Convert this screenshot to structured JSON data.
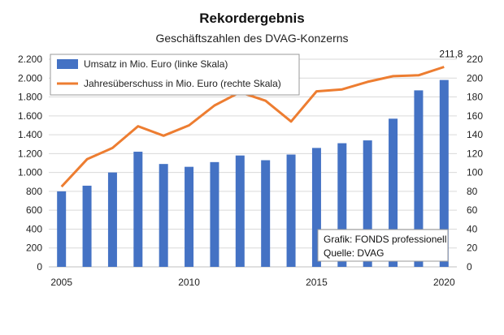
{
  "chart_data": {
    "type": "bar",
    "title": "Rekordergebnis",
    "subtitle": "Geschäftszahlen des DVAG-Konzerns",
    "x": [
      2005,
      2006,
      2007,
      2008,
      2009,
      2010,
      2011,
      2012,
      2013,
      2014,
      2015,
      2016,
      2017,
      2018,
      2019,
      2020
    ],
    "x_tick_labels": [
      "2005",
      "2010",
      "2015",
      "2020"
    ],
    "x_tick_values": [
      2005,
      2010,
      2015,
      2020
    ],
    "y_left": {
      "min": 0,
      "max": 2200,
      "ticks": [
        0,
        200,
        400,
        600,
        800,
        1000,
        1200,
        1400,
        1600,
        1800,
        2000,
        2200
      ],
      "tick_labels": [
        "0",
        "200",
        "400",
        "600",
        "800",
        "1.000",
        "1.200",
        "1.400",
        "1.600",
        "1.800",
        "2.000",
        "2.200"
      ]
    },
    "y_right": {
      "min": 0,
      "max": 220,
      "ticks": [
        0,
        20,
        40,
        60,
        80,
        100,
        120,
        140,
        160,
        180,
        200,
        220
      ],
      "tick_labels": [
        "0",
        "20",
        "40",
        "60",
        "80",
        "100",
        "120",
        "140",
        "160",
        "180",
        "200",
        "220"
      ]
    },
    "series": [
      {
        "name": "Umsatz in Mio. Euro (linke Skala)",
        "type": "bar",
        "axis": "left",
        "color": "#4472C4",
        "values": [
          800,
          860,
          1000,
          1220,
          1090,
          1060,
          1110,
          1180,
          1130,
          1190,
          1260,
          1310,
          1340,
          1570,
          1870,
          1980
        ]
      },
      {
        "name": "Jahresüberschuss in Mio. Euro (rechte Skala)",
        "type": "line",
        "axis": "right",
        "color": "#ED7D31",
        "values": [
          85,
          114,
          126,
          149,
          139,
          150,
          171,
          185,
          176,
          154,
          186,
          188,
          196,
          202,
          203,
          211.8
        ]
      }
    ],
    "annotations": [
      {
        "text": "211,8",
        "x": 2020,
        "series": "Jahresüberschuss in Mio. Euro (rechte Skala)"
      }
    ],
    "note": {
      "line1": "Grafik: FONDS professionell",
      "line2": "Quelle: DVAG"
    },
    "legend_position": "top-left",
    "grid": true
  }
}
